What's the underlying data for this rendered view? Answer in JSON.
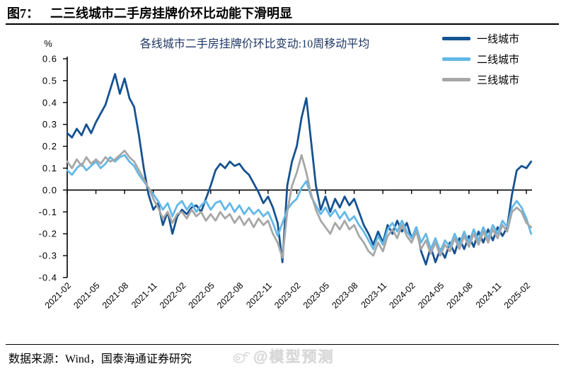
{
  "page": {
    "figure_label": "图7：",
    "title": "二三线城市二手房挂牌价环比动能下滑明显",
    "source_note": "数据来源：Wind，国泰海通证券研究",
    "watermark": "@模型预测"
  },
  "chart_data": {
    "type": "line",
    "title": "各线城市二手房挂牌价环比变动:10周移动平均",
    "y_unit": "%",
    "ylim": [
      -0.4,
      0.6
    ],
    "y_ticks": [
      0.6,
      0.5,
      0.4,
      0.3,
      0.2,
      0.1,
      0.0,
      -0.1,
      -0.2,
      -0.3,
      -0.4
    ],
    "grid": "none",
    "legend_position": "top-right",
    "x_tick_labels": [
      "2021-02",
      "2021-05",
      "2021-08",
      "2021-11",
      "2022-02",
      "2022-05",
      "2022-08",
      "2022-11",
      "2023-02",
      "2023-05",
      "2023-08",
      "2023-11",
      "2024-02",
      "2024-05",
      "2024-08",
      "2024-11",
      "2025-02"
    ],
    "x_months_per_tick": 3,
    "x_start_month": 0,
    "x_step_months": 0.5,
    "series": [
      {
        "name": "一线城市",
        "color": "#155291",
        "values": [
          0.26,
          0.24,
          0.28,
          0.25,
          0.3,
          0.26,
          0.31,
          0.35,
          0.39,
          0.46,
          0.53,
          0.44,
          0.51,
          0.42,
          0.38,
          0.25,
          0.1,
          -0.02,
          -0.09,
          -0.06,
          -0.16,
          -0.1,
          -0.2,
          -0.12,
          -0.09,
          -0.11,
          -0.08,
          -0.07,
          -0.1,
          -0.04,
          0.02,
          0.09,
          0.12,
          0.1,
          0.13,
          0.11,
          0.12,
          0.09,
          0.07,
          0.03,
          -0.01,
          -0.06,
          -0.03,
          -0.08,
          -0.15,
          -0.33,
          0.02,
          0.13,
          0.2,
          0.33,
          0.42,
          0.22,
          0.02,
          -0.09,
          -0.03,
          -0.1,
          -0.04,
          -0.08,
          -0.03,
          -0.07,
          -0.04,
          -0.1,
          -0.16,
          -0.2,
          -0.25,
          -0.19,
          -0.24,
          -0.16,
          -0.2,
          -0.14,
          -0.19,
          -0.15,
          -0.22,
          -0.17,
          -0.28,
          -0.34,
          -0.26,
          -0.33,
          -0.27,
          -0.31,
          -0.24,
          -0.29,
          -0.22,
          -0.27,
          -0.21,
          -0.26,
          -0.19,
          -0.24,
          -0.18,
          -0.23,
          -0.17,
          -0.21,
          -0.17,
          -0.02,
          0.09,
          0.11,
          0.1,
          0.13
        ]
      },
      {
        "name": "二线城市",
        "color": "#63b8e6",
        "values": [
          0.09,
          0.07,
          0.1,
          0.12,
          0.09,
          0.11,
          0.13,
          0.1,
          0.12,
          0.15,
          0.13,
          0.15,
          0.16,
          0.13,
          0.11,
          0.07,
          0.04,
          0.01,
          -0.02,
          -0.05,
          -0.09,
          -0.06,
          -0.12,
          -0.07,
          -0.05,
          -0.09,
          -0.06,
          -0.1,
          -0.07,
          -0.05,
          -0.09,
          -0.06,
          -0.05,
          -0.09,
          -0.06,
          -0.1,
          -0.07,
          -0.11,
          -0.08,
          -0.11,
          -0.09,
          -0.12,
          -0.1,
          -0.15,
          -0.21,
          -0.15,
          -0.09,
          -0.06,
          -0.04,
          0.01,
          0.04,
          -0.03,
          -0.07,
          -0.11,
          -0.08,
          -0.12,
          -0.09,
          -0.13,
          -0.1,
          -0.14,
          -0.12,
          -0.16,
          -0.19,
          -0.23,
          -0.27,
          -0.21,
          -0.25,
          -0.18,
          -0.15,
          -0.19,
          -0.14,
          -0.19,
          -0.22,
          -0.17,
          -0.24,
          -0.2,
          -0.27,
          -0.22,
          -0.28,
          -0.23,
          -0.26,
          -0.2,
          -0.25,
          -0.19,
          -0.24,
          -0.18,
          -0.23,
          -0.17,
          -0.22,
          -0.16,
          -0.2,
          -0.14,
          -0.17,
          -0.08,
          -0.05,
          -0.08,
          -0.13,
          -0.2
        ]
      },
      {
        "name": "三线城市",
        "color": "#a7a7a7",
        "values": [
          0.13,
          0.1,
          0.14,
          0.11,
          0.15,
          0.12,
          0.14,
          0.12,
          0.15,
          0.13,
          0.14,
          0.16,
          0.18,
          0.15,
          0.13,
          0.09,
          0.05,
          0.01,
          -0.04,
          -0.08,
          -0.13,
          -0.1,
          -0.15,
          -0.11,
          -0.1,
          -0.13,
          -0.09,
          -0.12,
          -0.1,
          -0.14,
          -0.11,
          -0.14,
          -0.1,
          -0.13,
          -0.11,
          -0.15,
          -0.12,
          -0.16,
          -0.13,
          -0.17,
          -0.13,
          -0.16,
          -0.14,
          -0.2,
          -0.24,
          -0.31,
          -0.1,
          0.02,
          0.08,
          0.16,
          0.08,
          -0.02,
          -0.09,
          -0.14,
          -0.17,
          -0.2,
          -0.15,
          -0.18,
          -0.14,
          -0.18,
          -0.16,
          -0.21,
          -0.24,
          -0.28,
          -0.3,
          -0.24,
          -0.28,
          -0.21,
          -0.18,
          -0.22,
          -0.16,
          -0.21,
          -0.24,
          -0.19,
          -0.27,
          -0.23,
          -0.29,
          -0.24,
          -0.3,
          -0.25,
          -0.28,
          -0.22,
          -0.27,
          -0.21,
          -0.26,
          -0.2,
          -0.25,
          -0.19,
          -0.24,
          -0.18,
          -0.22,
          -0.16,
          -0.19,
          -0.1,
          -0.08,
          -0.1,
          -0.15,
          -0.17
        ]
      }
    ]
  }
}
